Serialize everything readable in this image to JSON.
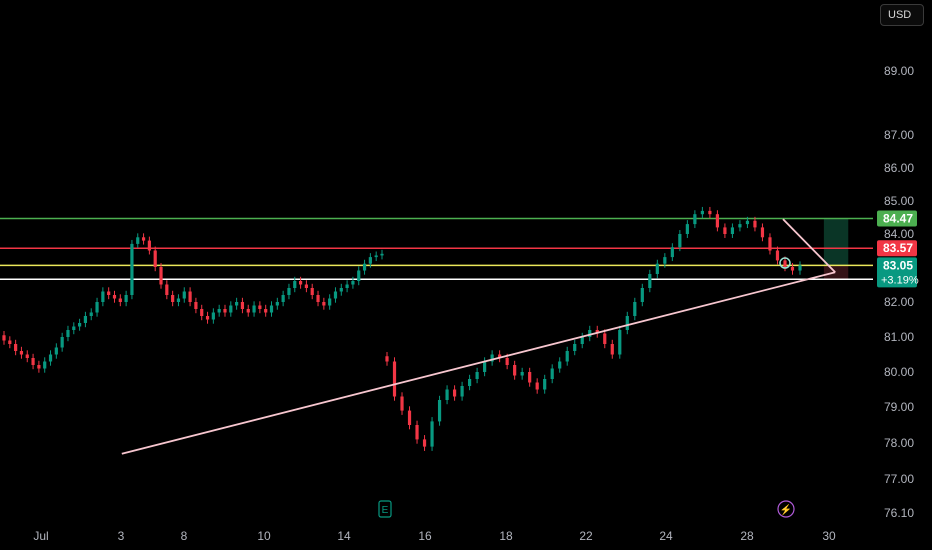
{
  "currency_label": "USD",
  "colors": {
    "background": "#000000",
    "up_candle": "#089981",
    "down_candle": "#f23645",
    "axis_text": "#b2b5be",
    "trendline": "#f7c6cf",
    "wedge": "#f7c6cf"
  },
  "chart_data": {
    "type": "candlestick",
    "title": "",
    "xlabel": "",
    "ylabel": "",
    "ylim": [
      76.1,
      90.0
    ],
    "x_ticks": [
      "Jul",
      "3",
      "8",
      "10",
      "14",
      "16",
      "18",
      "22",
      "24",
      "28",
      "30"
    ],
    "y_ticks": [
      "89.00",
      "87.00",
      "86.00",
      "85.00",
      "84.00",
      "83.00",
      "82.00",
      "81.00",
      "80.00",
      "79.00",
      "78.00",
      "77.00",
      "76.10"
    ],
    "horizontal_levels": [
      {
        "price": 84.47,
        "label": "84.47",
        "color": "#4caf50"
      },
      {
        "price": 83.57,
        "label": "83.57",
        "color": "#f23645"
      },
      {
        "price": 83.05,
        "label": "83.05",
        "sublabel": "+3.19%",
        "color": "#ebe85a",
        "label_color": "#089981"
      },
      {
        "price": 82.65,
        "label": "",
        "color": "#ffffff"
      }
    ],
    "trendlines": [
      {
        "from": {
          "bar": 0.14,
          "price": 77.7
        },
        "to": {
          "bar": 0.96,
          "price": 82.85
        }
      },
      {
        "from": {
          "bar": 0.9,
          "price": 84.45
        },
        "to": {
          "bar": 0.96,
          "price": 82.85
        }
      }
    ],
    "target_zone": {
      "from_bar": 0.947,
      "to_bar": 0.975,
      "top": 84.47,
      "bottom": 82.65
    },
    "events": [
      {
        "label": "E",
        "color": "#089981",
        "bar": 0.445
      },
      {
        "label": "⚡",
        "color": "#b05bd9",
        "bar": 0.91
      }
    ],
    "series": [
      {
        "segment": "before_gap",
        "closes": [
          80.9,
          80.8,
          80.6,
          80.5,
          80.4,
          80.2,
          80.1,
          80.3,
          80.5,
          80.7,
          81.0,
          81.2,
          81.3,
          81.4,
          81.6,
          81.7,
          82.0,
          82.3,
          82.2,
          82.1,
          82.0,
          82.2,
          83.7,
          83.9,
          83.8,
          83.5,
          83.0,
          82.5,
          82.2,
          82.0,
          82.1,
          82.3,
          82.0,
          81.8,
          81.6,
          81.5,
          81.7,
          81.8,
          81.7,
          81.9,
          82.0,
          81.8,
          81.7,
          81.9,
          81.8,
          81.7,
          81.9,
          82.0,
          82.2,
          82.4,
          82.6,
          82.5,
          82.4,
          82.2,
          82.0,
          81.9,
          82.1,
          82.3,
          82.4,
          82.5,
          82.6,
          82.9,
          83.1,
          83.3,
          83.35,
          83.4
        ]
      },
      {
        "segment": "after_gap",
        "closes": [
          80.3,
          79.3,
          78.9,
          78.5,
          78.1,
          77.9,
          78.6,
          79.2,
          79.5,
          79.3,
          79.6,
          79.8,
          80.0,
          80.3,
          80.5,
          80.4,
          80.2,
          79.9,
          80.0,
          79.7,
          79.5,
          79.8,
          80.1,
          80.3,
          80.6,
          80.8,
          81.0,
          81.2,
          81.1,
          80.8,
          80.5,
          81.2,
          81.6,
          82.0,
          82.4,
          82.8,
          83.1,
          83.3,
          83.6,
          84.0,
          84.3,
          84.6,
          84.7,
          84.6,
          84.2,
          84.0,
          84.2,
          84.3,
          84.4,
          84.2,
          83.9,
          83.5,
          83.2,
          83.0,
          82.9,
          83.05
        ]
      }
    ]
  }
}
